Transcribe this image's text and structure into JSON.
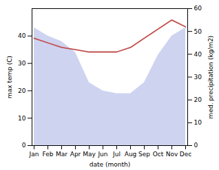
{
  "chart_data": {
    "type": "area",
    "xlabel": "date (month)",
    "ylabel": "max temp (C)",
    "y2label": "med. precipitation (kg/m2)",
    "categories": [
      "Jan",
      "Feb",
      "Mar",
      "Apr",
      "May",
      "Jun",
      "Jul",
      "Aug",
      "Sep",
      "Oct",
      "Nov",
      "Dec"
    ],
    "series": [
      {
        "type": "area",
        "color": "#b3bce8",
        "values": [
          43,
          40,
          38,
          34,
          23,
          20,
          19,
          19,
          23,
          33,
          40,
          43
        ]
      },
      {
        "type": "line",
        "axis": "y2",
        "color": "#c0504d",
        "values": [
          47,
          45,
          43,
          42,
          41,
          41,
          41,
          43,
          47,
          51,
          55,
          52
        ]
      }
    ],
    "ylim": [
      0,
      50
    ],
    "yticks": [
      0,
      10,
      20,
      30,
      40
    ],
    "y2lim": [
      0,
      60
    ],
    "y2ticks": [
      0,
      10,
      20,
      30,
      40,
      50,
      60
    ]
  }
}
